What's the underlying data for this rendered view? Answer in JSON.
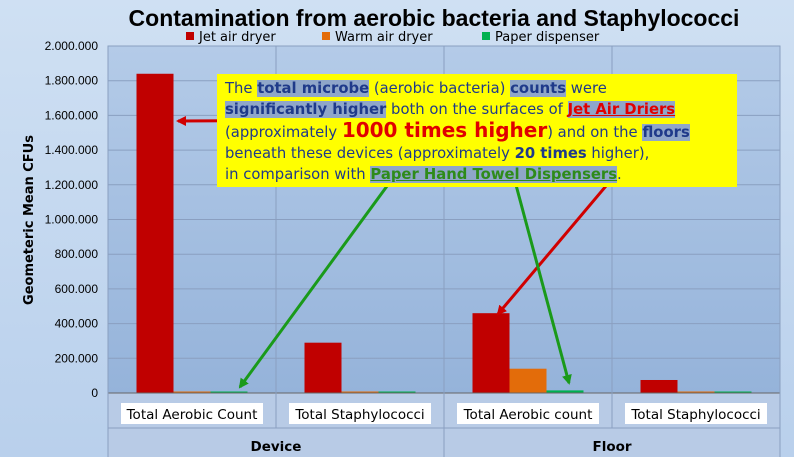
{
  "chart_data": {
    "type": "bar",
    "title": "Contamination from aerobic bacteria and Staphylococci",
    "ylabel": "Geometeric Mean CFUs",
    "xlabel": "",
    "ylim": [
      0,
      2000000
    ],
    "yticks": [
      "0",
      "200.000",
      "400.000",
      "600.000",
      "800.000",
      "1.000.000",
      "1.200.000",
      "1.400.000",
      "1.600.000",
      "1.800.000",
      "2.000.000"
    ],
    "groups": [
      "Device",
      "Floor"
    ],
    "categories": [
      "Total Aerobic Count",
      "Total Staphylococci",
      "Total Aerobic count",
      "Total Staphylococci"
    ],
    "series": [
      {
        "name": "Jet air dryer",
        "color": "#c00000",
        "values": [
          1840000,
          290000,
          460000,
          75000
        ]
      },
      {
        "name": "Warm air dryer",
        "color": "#e36c0a",
        "values": [
          2000,
          2000,
          140000,
          8000
        ]
      },
      {
        "name": "Paper dispenser",
        "color": "#00b050",
        "values": [
          2000,
          1000,
          15000,
          1000
        ]
      }
    ],
    "grid": true,
    "legend": "top"
  },
  "callout": {
    "l1a": "The ",
    "l1b": "total microbe",
    "l1c": " (aerobic bacteria) ",
    "l1d": "counts",
    "l1e": " were",
    "l2a": "significantly higher",
    "l2b": " both on the surfaces of ",
    "l2c": "Jet Air Driers",
    "l3a": "(approximately ",
    "l3b": "1000 times higher",
    "l3c": ")  and on the ",
    "l3d": "floors",
    "l4a": "beneath these devices (approximately ",
    "l4b": "20 times",
    "l4c": " higher),",
    "l5a": "in comparison with ",
    "l5b": "Paper Hand Towel Dispensers",
    "l5c": "."
  }
}
